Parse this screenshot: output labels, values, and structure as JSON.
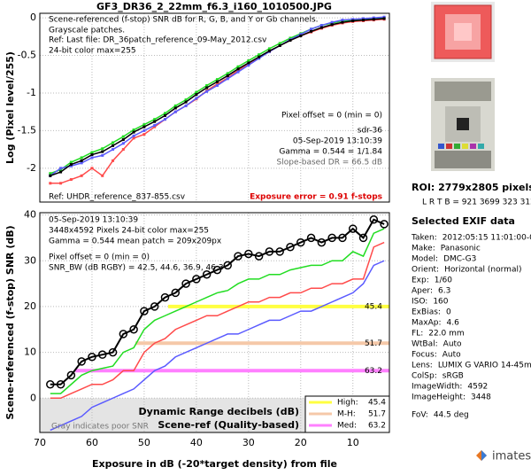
{
  "title": "GF3_DR36_2_22mm_f6.3_i160_1010500.JPG",
  "chart_data": [
    {
      "type": "line",
      "y_label": "Log (Pixel level/255)",
      "xlim": [
        70,
        3
      ],
      "ylim": [
        -2.45,
        0.06
      ],
      "xticks": [
        70,
        60,
        50,
        40,
        30,
        20,
        10
      ],
      "yticks": [
        0,
        -0.5,
        -1,
        -1.5,
        -2
      ],
      "grid": true,
      "x_tick_labels": false,
      "x": [
        68,
        66,
        64,
        62,
        60,
        58,
        56,
        54,
        52,
        50,
        48,
        46,
        44,
        42,
        40,
        38,
        36,
        34,
        32,
        30,
        28,
        26,
        24,
        22,
        20,
        18,
        16,
        14,
        12,
        10,
        8,
        6,
        4
      ],
      "series": [
        {
          "name": "R",
          "color": "#ff4b4b",
          "marker": "square",
          "values": [
            -2.2,
            -2.2,
            -2.15,
            -2.1,
            -2.0,
            -2.1,
            -1.9,
            -1.75,
            -1.6,
            -1.55,
            -1.45,
            -1.35,
            -1.25,
            -1.17,
            -1.08,
            -0.97,
            -0.88,
            -0.8,
            -0.7,
            -0.62,
            -0.53,
            -0.45,
            -0.37,
            -0.3,
            -0.24,
            -0.19,
            -0.14,
            -0.1,
            -0.07,
            -0.05,
            -0.04,
            -0.03,
            -0.02
          ]
        },
        {
          "name": "G",
          "color": "#22dd22",
          "marker": "square",
          "values": [
            -2.07,
            -2.02,
            -1.92,
            -1.86,
            -1.79,
            -1.74,
            -1.66,
            -1.58,
            -1.49,
            -1.42,
            -1.35,
            -1.27,
            -1.17,
            -1.09,
            -0.99,
            -0.9,
            -0.82,
            -0.74,
            -0.65,
            -0.57,
            -0.49,
            -0.41,
            -0.34,
            -0.27,
            -0.21,
            -0.15,
            -0.1,
            -0.07,
            -0.04,
            -0.03,
            -0.02,
            -0.01,
            0
          ]
        },
        {
          "name": "B",
          "color": "#5a5aff",
          "marker": "square",
          "values": [
            -2.1,
            -2.0,
            -1.97,
            -1.93,
            -1.86,
            -1.83,
            -1.75,
            -1.67,
            -1.57,
            -1.5,
            -1.43,
            -1.35,
            -1.25,
            -1.17,
            -1.07,
            -0.98,
            -0.9,
            -0.81,
            -0.72,
            -0.63,
            -0.54,
            -0.45,
            -0.37,
            -0.29,
            -0.22,
            -0.15,
            -0.1,
            -0.06,
            -0.03,
            -0.02,
            -0.01,
            0,
            0.01
          ]
        },
        {
          "name": "Y",
          "color": "#000000",
          "marker": "square",
          "values": [
            -2.1,
            -2.05,
            -1.95,
            -1.9,
            -1.82,
            -1.78,
            -1.7,
            -1.62,
            -1.52,
            -1.45,
            -1.38,
            -1.3,
            -1.2,
            -1.12,
            -1.02,
            -0.93,
            -0.85,
            -0.77,
            -0.68,
            -0.6,
            -0.52,
            -0.44,
            -0.37,
            -0.3,
            -0.24,
            -0.18,
            -0.13,
            -0.09,
            -0.06,
            -0.04,
            -0.03,
            -0.02,
            -0.01
          ]
        }
      ],
      "annotations": [
        {
          "text": "Scene-referenced (f-stop) SNR dB for R, G, B, and Y or Gb channels."
        },
        {
          "text": "Grayscale patches."
        },
        {
          "text": "Ref: Last file: DR_36patch_reference_09-May_2012.csv"
        },
        {
          "text": "24-bit color  max=255"
        },
        {
          "text": "Pixel offset = 0  (min = 0)"
        },
        {
          "text": "sdr-36"
        },
        {
          "text": "05-Sep-2019 13:10:39"
        },
        {
          "text": "Gamma = 0.544 = 1/1.84"
        },
        {
          "text": "Slope-based DR = 66.5 dB",
          "color": "#666666"
        },
        {
          "text": "Ref: UHDR_reference_837-855.csv"
        },
        {
          "text": "Exposure error = 0.91 f-stops",
          "color": "#dd0000"
        }
      ]
    },
    {
      "type": "line",
      "x_label": "Exposure in dB (-20*target density)   from file",
      "y_label": "Scene-referenced (f-stop) SNR (dB)",
      "xlim": [
        70,
        3
      ],
      "ylim": [
        -7.5,
        40.5
      ],
      "xticks": [
        70,
        60,
        50,
        40,
        30,
        20,
        10
      ],
      "yticks": [
        0,
        10,
        20,
        30,
        40
      ],
      "grid": true,
      "x_tick_labels": true,
      "poor_snr_shading": true,
      "x": [
        68,
        66,
        64,
        62,
        60,
        58,
        56,
        54,
        52,
        50,
        48,
        46,
        44,
        42,
        40,
        38,
        36,
        34,
        32,
        30,
        28,
        26,
        24,
        22,
        20,
        18,
        16,
        14,
        12,
        10,
        8,
        6,
        4
      ],
      "series": [
        {
          "name": "B",
          "color": "#5a5aff",
          "marker": "none",
          "values": [
            -7,
            -6,
            -5,
            -4,
            -2,
            -1,
            0,
            1,
            2,
            4,
            6,
            7,
            9,
            10,
            11,
            12,
            13,
            14,
            14,
            15,
            16,
            17,
            17,
            18,
            19,
            19,
            20,
            21,
            22,
            23,
            25,
            29,
            30
          ]
        },
        {
          "name": "R",
          "color": "#ff4b4b",
          "marker": "none",
          "values": [
            0,
            0,
            1,
            2,
            3,
            3,
            4,
            6,
            6,
            10,
            12,
            13,
            15,
            16,
            17,
            18,
            18,
            19,
            20,
            21,
            21,
            22,
            22,
            23,
            23,
            24,
            24,
            25,
            25,
            26,
            26,
            33,
            34
          ]
        },
        {
          "name": "G",
          "color": "#22dd22",
          "marker": "none",
          "values": [
            1,
            1,
            3,
            5,
            6,
            6.5,
            7,
            10,
            11,
            15,
            17,
            18,
            19,
            20,
            21,
            22,
            23,
            23.5,
            25,
            26,
            26,
            27,
            27,
            28,
            28.5,
            29,
            29,
            30,
            30,
            32,
            31,
            36,
            37
          ]
        },
        {
          "name": "Y",
          "color": "#000000",
          "marker": "circle",
          "values": [
            3,
            3,
            5,
            8,
            9,
            9.5,
            10,
            14,
            15,
            19,
            20,
            22,
            23,
            25,
            26,
            27,
            28,
            29,
            31,
            31.5,
            31,
            32,
            32,
            33,
            34,
            35,
            34,
            35,
            35,
            37,
            35,
            39,
            38
          ]
        }
      ],
      "dr_lines": [
        {
          "name": "High:",
          "value": 45.4,
          "snr": 20,
          "color": "#ffff40"
        },
        {
          "name": "M-H:",
          "value": 51.7,
          "snr": 12,
          "color": "#f5c8a8"
        },
        {
          "name": "Med:",
          "value": 63.2,
          "snr": 6,
          "color": "#ff80ff"
        }
      ],
      "annotations": [
        {
          "text": "05-Sep-2019 13:10:39"
        },
        {
          "text": "3448x4592 Pixels   24-bit color  max=255"
        },
        {
          "text": "Gamma = 0.544    mean patch = 209x209px"
        },
        {
          "text": "Pixel offset = 0  (min = 0)"
        },
        {
          "text": "SNR_BW (dB RGBY) = 42.5, 44.6, 36.9, 46.3"
        },
        {
          "text": "Dynamic Range decibels (dB)",
          "bold": true
        },
        {
          "text": "Scene-ref (Quality-based)",
          "bold": true
        },
        {
          "text": "Gray indicates poor SNR",
          "color": "#777777"
        }
      ]
    }
  ],
  "side_panel": {
    "roi": "ROI:  2779x2805 pixels",
    "lrtb": "L R T B = 921 3699 323 3127",
    "exif_title": "Selected EXIF data",
    "exif": [
      [
        "Taken:",
        "2012:05:15 11:01:00-06:0"
      ],
      [
        "Make:",
        "Panasonic"
      ],
      [
        "Model:",
        "DMC-G3"
      ],
      [
        "Orient:",
        "Horizontal (normal)"
      ],
      [
        "Exp:",
        "1/60"
      ],
      [
        "Aper:",
        "6.3"
      ],
      [
        "ISO:",
        "160"
      ],
      [
        "ExBias:",
        "0"
      ],
      [
        "MaxAp:",
        "4.6"
      ],
      [
        "FL:",
        "22.0 mm"
      ],
      [
        "WtBal:",
        "Auto"
      ],
      [
        "Focus:",
        "Auto"
      ],
      [
        "Lens:",
        "LUMIX G VARIO 14-45mm"
      ],
      [
        "ColSp:",
        "sRGB"
      ],
      [
        "ImageWidth:",
        "4592"
      ],
      [
        "ImageHeight:",
        "3448"
      ],
      [
        "FoV:",
        "44.5 deg"
      ]
    ],
    "logo": "imatest"
  }
}
